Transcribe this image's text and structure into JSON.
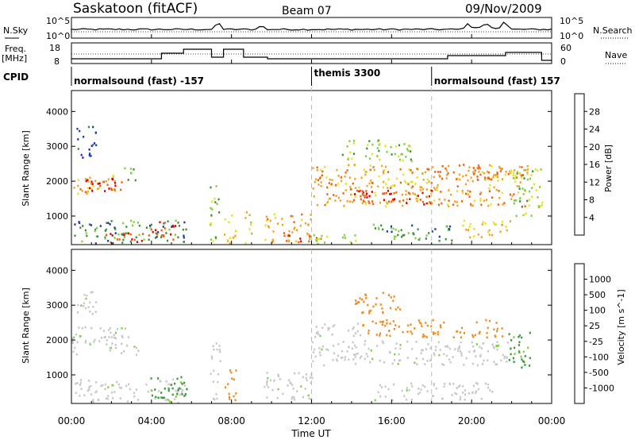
{
  "header": {
    "station": "Saskatoon (fitACF)",
    "beam": "Beam 07",
    "date": "09/Nov/2009"
  },
  "noise_panel": {
    "left_label": "N.Sky",
    "right_label": "N.Search",
    "left_ticks": [
      "10^5",
      "10^0"
    ],
    "right_ticks": [
      "10^5",
      "10^0"
    ]
  },
  "freq_panel": {
    "left_label_1": "Freq.",
    "left_label_2": "[MHz]",
    "right_label": "Nave",
    "left_ticks": [
      "18",
      "8"
    ],
    "right_ticks": [
      "60",
      "0"
    ]
  },
  "cpid_panel": {
    "label": "CPID",
    "modes": [
      {
        "name": "normalsound (fast) -157",
        "start_h": 0.0
      },
      {
        "name": "themis 3300",
        "start_h": 12.0
      },
      {
        "name": "normalsound (fast) 157",
        "start_h": 18.0
      }
    ]
  },
  "x_axis": {
    "label": "Time UT",
    "ticks": [
      "00:00",
      "04:00",
      "08:00",
      "12:00",
      "16:00",
      "20:00",
      "00:00"
    ],
    "range_h": [
      0,
      24
    ]
  },
  "colors": {
    "power_scale": [
      "#1e1eff",
      "#1c3fa0",
      "#3b8f3b",
      "#7fcf3f",
      "#e8e020",
      "#f5a020",
      "#f06010",
      "#e00000"
    ],
    "velocity_scale": [
      "#2a3ab8",
      "#3a6ac0",
      "#3a9a3a",
      "#7fd040",
      "#c8c8c8",
      "#c8c8c8",
      "#f08a20",
      "#f05a10",
      "#e00000"
    ]
  },
  "chart_data": [
    {
      "type": "heatmap",
      "name": "power",
      "ylabel": "Slant Range [km]",
      "xlabel": "",
      "y_ticks": [
        "1000",
        "2000",
        "3000",
        "4000"
      ],
      "ylim": [
        180,
        4600
      ],
      "xlim": [
        0,
        24
      ],
      "colorbar_label": "Power [dB]",
      "colorbar_ticks": [
        "4",
        "8",
        "12",
        "16",
        "20",
        "24",
        "28"
      ],
      "colorbar_range": [
        0,
        32
      ],
      "regions": [
        {
          "t0": 0.0,
          "t1": 2.2,
          "r0": 1600,
          "r1": 2200,
          "level": 22
        },
        {
          "t0": 0.2,
          "t1": 2.7,
          "r0": 1700,
          "r1": 2100,
          "level": 28
        },
        {
          "t0": 2.6,
          "t1": 3.3,
          "r0": 1950,
          "r1": 2400,
          "level": 12
        },
        {
          "t0": 0.2,
          "t1": 1.2,
          "r0": 2700,
          "r1": 3600,
          "level": 6
        },
        {
          "t0": 0.1,
          "t1": 5.8,
          "r0": 200,
          "r1": 900,
          "level": 10
        },
        {
          "t0": 1.4,
          "t1": 3.6,
          "r0": 250,
          "r1": 550,
          "level": 28
        },
        {
          "t0": 3.8,
          "t1": 5.2,
          "r0": 350,
          "r1": 900,
          "level": 28
        },
        {
          "t0": 6.9,
          "t1": 7.4,
          "r0": 200,
          "r1": 2000,
          "level": 14
        },
        {
          "t0": 7.6,
          "t1": 8.2,
          "r0": 200,
          "r1": 1200,
          "level": 20
        },
        {
          "t0": 8.6,
          "t1": 9.0,
          "r0": 200,
          "r1": 1200,
          "level": 18
        },
        {
          "t0": 9.6,
          "t1": 12.0,
          "r0": 250,
          "r1": 1100,
          "level": 22
        },
        {
          "t0": 10.8,
          "t1": 12.6,
          "r0": 250,
          "r1": 500,
          "level": 28
        },
        {
          "t0": 12.0,
          "t1": 14.6,
          "r0": 200,
          "r1": 500,
          "level": 16
        },
        {
          "t0": 12.0,
          "t1": 22.8,
          "r0": 1300,
          "r1": 2500,
          "level": 22
        },
        {
          "t0": 14.0,
          "t1": 18.5,
          "r0": 1350,
          "r1": 1800,
          "level": 28
        },
        {
          "t0": 17.5,
          "t1": 21.5,
          "r0": 2050,
          "r1": 2500,
          "level": 24
        },
        {
          "t0": 19.5,
          "t1": 22.0,
          "r0": 400,
          "r1": 900,
          "level": 20
        },
        {
          "t0": 13.5,
          "t1": 17.0,
          "r0": 2600,
          "r1": 3200,
          "level": 14
        },
        {
          "t0": 22.0,
          "t1": 23.5,
          "r0": 900,
          "r1": 2400,
          "level": 14
        },
        {
          "t0": 15.0,
          "t1": 19.0,
          "r0": 300,
          "r1": 800,
          "level": 10
        }
      ]
    },
    {
      "type": "heatmap",
      "name": "velocity",
      "ylabel": "Slant Range [km]",
      "xlabel": "Time UT",
      "y_ticks": [
        "1000",
        "2000",
        "3000",
        "4000"
      ],
      "ylim": [
        180,
        4600
      ],
      "xlim": [
        0,
        24
      ],
      "colorbar_label": "Velocity [m s^-1]",
      "colorbar_ticks": [
        "1000",
        "500",
        "100",
        "25",
        "-25",
        "-100",
        "-500",
        "-1000"
      ],
      "regions": [
        {
          "t0": 0.0,
          "t1": 3.3,
          "r0": 1600,
          "r1": 2400,
          "level": 0
        },
        {
          "t0": 0.2,
          "t1": 1.2,
          "r0": 2700,
          "r1": 3500,
          "level": 0
        },
        {
          "t0": 0.1,
          "t1": 5.8,
          "r0": 200,
          "r1": 900,
          "level": 0
        },
        {
          "t0": 3.8,
          "t1": 5.8,
          "r0": 350,
          "r1": 1000,
          "level": 120
        },
        {
          "t0": 6.9,
          "t1": 7.4,
          "r0": 200,
          "r1": 2000,
          "level": 0
        },
        {
          "t0": 7.6,
          "t1": 8.2,
          "r0": 200,
          "r1": 1200,
          "level": -150
        },
        {
          "t0": 9.6,
          "t1": 12.0,
          "r0": 250,
          "r1": 1100,
          "level": 0
        },
        {
          "t0": 12.0,
          "t1": 14.5,
          "r0": 2100,
          "r1": 2500,
          "level": 0
        },
        {
          "t0": 12.0,
          "t1": 22.0,
          "r0": 1300,
          "r1": 2000,
          "level": 0
        },
        {
          "t0": 14.5,
          "t1": 21.5,
          "r0": 2100,
          "r1": 2600,
          "level": -400
        },
        {
          "t0": 14.0,
          "t1": 16.5,
          "r0": 2800,
          "r1": 3400,
          "level": -300
        },
        {
          "t0": 21.8,
          "t1": 23.0,
          "r0": 1200,
          "r1": 2300,
          "level": 120
        },
        {
          "t0": 15.0,
          "t1": 21.0,
          "r0": 300,
          "r1": 800,
          "level": 0
        }
      ]
    }
  ]
}
